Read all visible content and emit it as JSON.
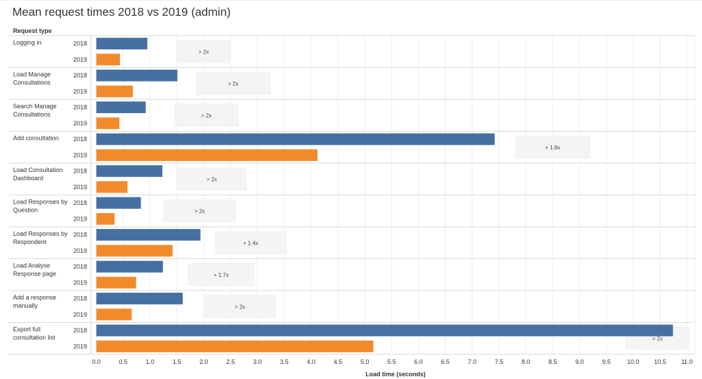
{
  "chart_data": {
    "type": "bar",
    "orientation": "horizontal",
    "title": "Mean request times 2018 vs 2019 (admin)",
    "row_header": "Request type",
    "xlabel": "Load time (seconds)",
    "xlim": [
      0,
      11.1
    ],
    "xticks": [
      "0.0",
      "0.5",
      "1.0",
      "1.5",
      "2.0",
      "2.5",
      "3.0",
      "3.5",
      "4.0",
      "4.5",
      "5.0",
      "5.5",
      "6.0",
      "6.5",
      "7.0",
      "7.5",
      "8.0",
      "8.5",
      "9.0",
      "9.5",
      "10.0",
      "10.5",
      "11.0"
    ],
    "grid": true,
    "series_colors": {
      "2018": "#4670a0",
      "2019": "#f28b2c"
    },
    "categories": [
      {
        "label": [
          "Logging in"
        ],
        "v2018": 0.95,
        "v2019": 0.44,
        "ratio": "> 2x",
        "ann_start": 1.5,
        "ann_end": 2.5
      },
      {
        "label": [
          "Load Manage",
          "Consultations"
        ],
        "v2018": 1.51,
        "v2019": 0.68,
        "ratio": "> 2x",
        "ann_start": 1.85,
        "ann_end": 3.25
      },
      {
        "label": [
          "Search Manage",
          "Consultations"
        ],
        "v2018": 0.92,
        "v2019": 0.43,
        "ratio": "> 2x",
        "ann_start": 1.45,
        "ann_end": 2.65
      },
      {
        "label": [
          "Add consultation"
        ],
        "v2018": 7.42,
        "v2019": 4.12,
        "ratio": "+ 1.8x",
        "ann_start": 7.8,
        "ann_end": 9.2
      },
      {
        "label": [
          "Load Consultation",
          "Dashboard"
        ],
        "v2018": 1.23,
        "v2019": 0.58,
        "ratio": "> 2x",
        "ann_start": 1.5,
        "ann_end": 2.8
      },
      {
        "label": [
          "Load Responses by",
          "Question"
        ],
        "v2018": 0.83,
        "v2019": 0.34,
        "ratio": "> 2x",
        "ann_start": 1.25,
        "ann_end": 2.6
      },
      {
        "label": [
          "Load Responses by",
          "Respondent"
        ],
        "v2018": 1.94,
        "v2019": 1.42,
        "ratio": "+ 1.4x",
        "ann_start": 2.2,
        "ann_end": 3.55
      },
      {
        "label": [
          "Load Analyse",
          "Response page"
        ],
        "v2018": 1.24,
        "v2019": 0.74,
        "ratio": "+ 1.7x",
        "ann_start": 1.7,
        "ann_end": 2.95
      },
      {
        "label": [
          "Add a response",
          "manually"
        ],
        "v2018": 1.61,
        "v2019": 0.66,
        "ratio": "> 2x",
        "ann_start": 2.0,
        "ann_end": 3.35
      },
      {
        "label": [
          "Export full",
          "consultation list"
        ],
        "v2018": 10.74,
        "v2019": 5.16,
        "ratio": "> 2x",
        "ann_start": 9.85,
        "ann_end": 11.05
      }
    ]
  }
}
